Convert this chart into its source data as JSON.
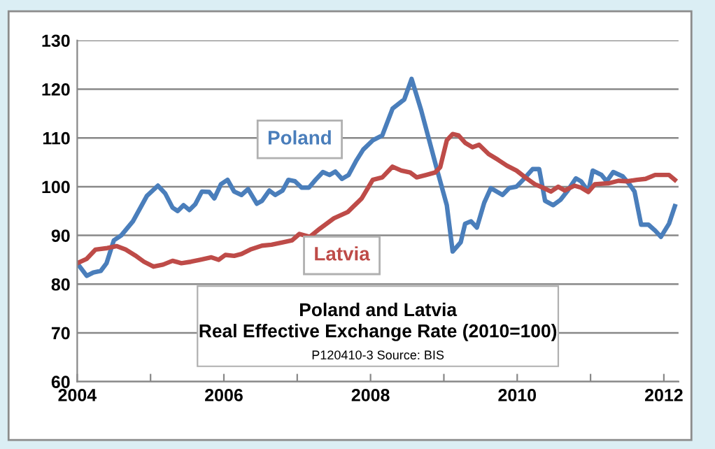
{
  "chart_data": {
    "type": "line",
    "title": "Poland and Latvia\nReal Effective Exchange Rate (2010=100)",
    "annotations": [
      "P120410-3 Source: BIS"
    ],
    "xlim": [
      2004,
      2012.2
    ],
    "xticks": [
      2004,
      {
        "value": 2005,
        "label": null
      },
      2006,
      {
        "value": 2007,
        "label": null
      },
      2008,
      {
        "value": 2009,
        "label": null
      },
      2010,
      {
        "value": 2011,
        "label": null
      },
      2012
    ],
    "ylim": [
      60,
      130
    ],
    "yticks": [
      60,
      70,
      80,
      90,
      100,
      110,
      120,
      130
    ],
    "grid": "y",
    "legend": false,
    "line_style": "solid",
    "marker": "none",
    "series": [
      {
        "name": "Poland",
        "color": "#4a7ebb",
        "x": [
          2004.0,
          2004.13,
          2004.22,
          2004.32,
          2004.4,
          2004.5,
          2004.6,
          2004.76,
          2004.95,
          2005.1,
          2005.2,
          2005.3,
          2005.37,
          2005.45,
          2005.53,
          2005.61,
          2005.7,
          2005.8,
          2005.87,
          2005.96,
          2006.05,
          2006.14,
          2006.24,
          2006.33,
          2006.45,
          2006.52,
          2006.62,
          2006.7,
          2006.8,
          2006.88,
          2006.97,
          2007.06,
          2007.16,
          2007.25,
          2007.35,
          2007.44,
          2007.52,
          2007.61,
          2007.7,
          2007.8,
          2007.9,
          2008.03,
          2008.16,
          2008.3,
          2008.46,
          2008.56,
          2008.69,
          2008.8,
          2008.91,
          2009.04,
          2009.12,
          2009.23,
          2009.29,
          2009.37,
          2009.45,
          2009.55,
          2009.64,
          2009.8,
          2009.89,
          2009.99,
          2010.08,
          2010.21,
          2010.3,
          2010.38,
          2010.49,
          2010.59,
          2010.68,
          2010.8,
          2010.87,
          2010.97,
          2011.03,
          2011.15,
          2011.22,
          2011.31,
          2011.44,
          2011.53,
          2011.6,
          2011.69,
          2011.79,
          2011.88,
          2011.96,
          2012.07,
          2012.15
        ],
        "values": [
          84.3,
          81.7,
          82.4,
          82.7,
          84.3,
          89,
          90,
          92.9,
          98.1,
          100.2,
          98.6,
          95.7,
          95,
          96.2,
          95.2,
          96.4,
          99,
          98.9,
          97.6,
          100.5,
          101.4,
          99,
          98.3,
          99.5,
          96.5,
          97.1,
          99.2,
          98.3,
          99.2,
          101.4,
          101.1,
          99.8,
          99.8,
          101.4,
          103,
          102.4,
          103.1,
          101.6,
          102.4,
          105.2,
          107.6,
          109.5,
          110.5,
          116,
          117.9,
          122.1,
          115.7,
          109.5,
          103.3,
          96.2,
          86.7,
          88.6,
          92.4,
          92.9,
          91.6,
          96.7,
          99.7,
          98.3,
          99.7,
          100,
          101.4,
          103.6,
          103.6,
          97.1,
          96.2,
          97.3,
          99,
          101.7,
          101.1,
          99,
          103.3,
          102.4,
          101.1,
          103,
          102.1,
          100.5,
          99,
          92.2,
          92.2,
          91,
          89.7,
          92.4,
          96
        ]
      },
      {
        "name": "Latvia",
        "color": "#be4b48",
        "x": [
          2004.0,
          2004.13,
          2004.25,
          2004.41,
          2004.54,
          2004.66,
          2004.79,
          2004.91,
          2005.04,
          2005.17,
          2005.3,
          2005.42,
          2005.55,
          2005.68,
          2005.83,
          2005.93,
          2006.02,
          2006.14,
          2006.24,
          2006.36,
          2006.52,
          2006.65,
          2006.81,
          2006.93,
          2007.03,
          2007.17,
          2007.31,
          2007.5,
          2007.69,
          2007.88,
          2008.03,
          2008.16,
          2008.3,
          2008.42,
          2008.54,
          2008.63,
          2008.76,
          2008.88,
          2008.95,
          2009.04,
          2009.12,
          2009.2,
          2009.29,
          2009.39,
          2009.48,
          2009.61,
          2009.74,
          2009.86,
          2009.99,
          2010.11,
          2010.24,
          2010.35,
          2010.46,
          2010.56,
          2010.65,
          2010.78,
          2010.87,
          2010.97,
          2011.06,
          2011.25,
          2011.38,
          2011.5,
          2011.63,
          2011.75,
          2011.88,
          2012.07,
          2012.15
        ],
        "values": [
          84.3,
          85.2,
          87.1,
          87.4,
          87.8,
          87.1,
          85.9,
          84.6,
          83.6,
          84,
          84.8,
          84.3,
          84.6,
          85,
          85.5,
          85,
          86,
          85.8,
          86.2,
          87.1,
          87.9,
          88.1,
          88.6,
          89,
          90.3,
          89.7,
          91.4,
          93.5,
          94.8,
          97.6,
          101.4,
          101.9,
          104.1,
          103.3,
          102.9,
          101.9,
          102.4,
          102.9,
          104,
          109.5,
          110.8,
          110.5,
          109,
          108.1,
          108.6,
          106.7,
          105.5,
          104.3,
          103.3,
          101.9,
          100.5,
          99.8,
          99,
          100,
          99.2,
          100.2,
          99.8,
          98.9,
          100.5,
          100.7,
          101.2,
          101.1,
          101.4,
          101.6,
          102.4,
          102.4,
          101.4
        ]
      }
    ]
  }
}
